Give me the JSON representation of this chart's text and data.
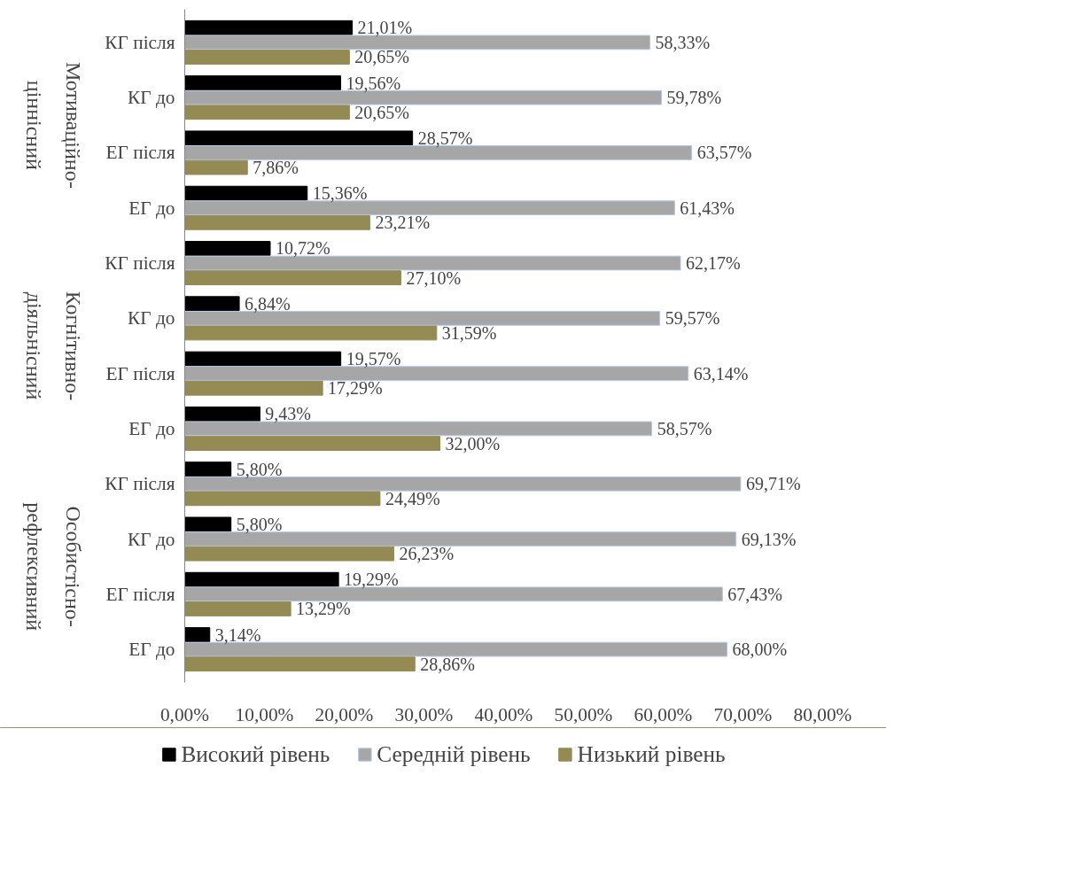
{
  "chart_data": {
    "type": "bar",
    "orientation": "horizontal",
    "categories": [
      "КГ після",
      "КГ до",
      "ЕГ після",
      "ЕГ до",
      "КГ після",
      "КГ до",
      "ЕГ після",
      "ЕГ до",
      "КГ після",
      "КГ до",
      "ЕГ після",
      "ЕГ до"
    ],
    "series": [
      {
        "name": "Високий рівень",
        "color": "#000000",
        "values": [
          21.01,
          19.56,
          28.57,
          15.36,
          10.72,
          6.84,
          19.57,
          9.43,
          5.8,
          5.8,
          19.29,
          3.14
        ],
        "value_labels": [
          "21,01%",
          "19,56%",
          "28,57%",
          "15,36%",
          "10,72%",
          "6,84%",
          "19,57%",
          "9,43%",
          "5,80%",
          "5,80%",
          "19,29%",
          "3,14%"
        ]
      },
      {
        "name": "Середній рівень",
        "color": "#a6a6a6",
        "values": [
          58.33,
          59.78,
          63.57,
          61.43,
          62.17,
          59.57,
          63.14,
          58.57,
          69.71,
          69.13,
          67.43,
          68.0
        ],
        "value_labels": [
          "58,33%",
          "59,78%",
          "63,57%",
          "61,43%",
          "62,17%",
          "59,57%",
          "63,14%",
          "58,57%",
          "69,71%",
          "69,13%",
          "67,43%",
          "68,00%"
        ]
      },
      {
        "name": "Низький рівень",
        "color": "#948a54",
        "values": [
          20.65,
          20.65,
          7.86,
          23.21,
          27.1,
          31.59,
          17.29,
          32.0,
          24.49,
          26.23,
          13.29,
          28.86
        ],
        "value_labels": [
          "20,65%",
          "20,65%",
          "7,86%",
          "23,21%",
          "27,10%",
          "31,59%",
          "17,29%",
          "32,00%",
          "24,49%",
          "26,23%",
          "13,29%",
          "28,86%"
        ]
      }
    ],
    "annotations": [
      "Мотиваційно-ціннісний",
      "Когнітивно-діяльнісний",
      "Особистісно-рефлексивний"
    ],
    "xlim": [
      0,
      80
    ],
    "xticks": [
      {
        "value": 0,
        "label": "0,00%"
      },
      {
        "value": 10,
        "label": "10,00%"
      },
      {
        "value": 20,
        "label": "20,00%"
      },
      {
        "value": 30,
        "label": "30,00%"
      },
      {
        "value": 40,
        "label": "40,00%"
      },
      {
        "value": 50,
        "label": "50,00%"
      },
      {
        "value": 60,
        "label": "60,00%"
      },
      {
        "value": 70,
        "label": "70,00%"
      },
      {
        "value": 80,
        "label": "80,00%"
      }
    ],
    "grid": false,
    "legend": "bottom"
  }
}
